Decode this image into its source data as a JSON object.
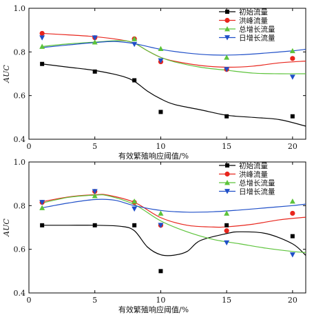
{
  "chart_data": [
    {
      "type": "scatter",
      "title": "",
      "xlabel": "有效繁殖响应阈值/%",
      "ylabel": "AUC",
      "xlim": [
        0,
        21
      ],
      "ylim": [
        0.4,
        1.0
      ],
      "xticks": [
        0,
        5,
        10,
        15,
        20
      ],
      "yticks": [
        0.4,
        0.6,
        0.8,
        1.0
      ],
      "x_tick_labels": [
        "0",
        "5",
        "10",
        "15",
        "20"
      ],
      "y_tick_labels": [
        "0.4",
        "0.6",
        "0.8",
        "1.0"
      ],
      "grid": false,
      "legend_position": "top-right",
      "fitted_curves": true,
      "series": [
        {
          "name": "初始流量",
          "color": "#000000",
          "marker": "square",
          "x": [
            1,
            5,
            8,
            10,
            15,
            20
          ],
          "y": [
            0.745,
            0.71,
            0.67,
            0.525,
            0.505,
            0.505
          ],
          "curve": [
            [
              1,
              0.745
            ],
            [
              3,
              0.73
            ],
            [
              5,
              0.715
            ],
            [
              7,
              0.69
            ],
            [
              8,
              0.665
            ],
            [
              9,
              0.62
            ],
            [
              10,
              0.585
            ],
            [
              11,
              0.56
            ],
            [
              13,
              0.535
            ],
            [
              15,
              0.51
            ],
            [
              17,
              0.5
            ],
            [
              19,
              0.49
            ],
            [
              21,
              0.46
            ]
          ]
        },
        {
          "name": "洪峰流量",
          "color": "#e8251c",
          "marker": "circle",
          "x": [
            1,
            5,
            8,
            10,
            15,
            20
          ],
          "y": [
            0.885,
            0.865,
            0.86,
            0.755,
            0.72,
            0.77
          ],
          "curve": [
            [
              1,
              0.885
            ],
            [
              3,
              0.878
            ],
            [
              5,
              0.87
            ],
            [
              7,
              0.855
            ],
            [
              8,
              0.84
            ],
            [
              9,
              0.805
            ],
            [
              10,
              0.775
            ],
            [
              11,
              0.758
            ],
            [
              13,
              0.738
            ],
            [
              15,
              0.73
            ],
            [
              17,
              0.735
            ],
            [
              19,
              0.75
            ],
            [
              21,
              0.758
            ]
          ]
        },
        {
          "name": "总增长流量",
          "color": "#5cc33a",
          "marker": "triangle-up",
          "x": [
            1,
            5,
            8,
            10,
            15,
            20
          ],
          "y": [
            0.825,
            0.845,
            0.86,
            0.815,
            0.775,
            0.805
          ],
          "curve": [
            [
              1,
              0.825
            ],
            [
              3,
              0.837
            ],
            [
              5,
              0.845
            ],
            [
              7,
              0.852
            ],
            [
              8,
              0.84
            ],
            [
              9,
              0.805
            ],
            [
              10,
              0.775
            ],
            [
              11,
              0.755
            ],
            [
              13,
              0.73
            ],
            [
              15,
              0.716
            ],
            [
              17,
              0.703
            ],
            [
              19,
              0.7
            ],
            [
              21,
              0.7
            ]
          ]
        },
        {
          "name": "日增长流量",
          "color": "#1f4fc8",
          "marker": "triangle-down",
          "x": [
            1,
            5,
            8,
            10,
            15,
            20
          ],
          "y": [
            0.865,
            0.865,
            0.835,
            0.76,
            0.72,
            0.685
          ],
          "curve": [
            [
              1,
              0.82
            ],
            [
              3,
              0.832
            ],
            [
              5,
              0.843
            ],
            [
              6.5,
              0.848
            ],
            [
              8,
              0.838
            ],
            [
              10,
              0.812
            ],
            [
              12,
              0.795
            ],
            [
              14,
              0.786
            ],
            [
              16,
              0.787
            ],
            [
              18,
              0.795
            ],
            [
              20,
              0.805
            ],
            [
              21,
              0.812
            ]
          ]
        }
      ]
    },
    {
      "type": "scatter",
      "title": "",
      "xlabel": "有效繁殖响应阈值/%",
      "ylabel": "AUC",
      "xlim": [
        0,
        21
      ],
      "ylim": [
        0.4,
        1.0
      ],
      "xticks": [
        0,
        5,
        10,
        15,
        20
      ],
      "yticks": [
        0.4,
        0.6,
        0.8,
        1.0
      ],
      "x_tick_labels": [
        "0",
        "5",
        "10",
        "15",
        "20"
      ],
      "y_tick_labels": [
        "0.4",
        "0.6",
        "0.8",
        "1.0"
      ],
      "grid": false,
      "legend_position": "top-right",
      "fitted_curves": true,
      "series": [
        {
          "name": "初始流量",
          "color": "#000000",
          "marker": "square",
          "x": [
            1,
            5,
            8,
            10,
            15,
            20
          ],
          "y": [
            0.71,
            0.71,
            0.71,
            0.5,
            0.71,
            0.66
          ],
          "curve": [
            [
              1,
              0.71
            ],
            [
              3,
              0.71
            ],
            [
              5,
              0.71
            ],
            [
              7,
              0.705
            ],
            [
              8,
              0.685
            ],
            [
              9,
              0.61
            ],
            [
              10,
              0.575
            ],
            [
              11,
              0.573
            ],
            [
              12,
              0.59
            ],
            [
              13,
              0.64
            ],
            [
              15,
              0.672
            ],
            [
              16,
              0.68
            ],
            [
              18,
              0.672
            ],
            [
              20,
              0.625
            ],
            [
              21,
              0.572
            ]
          ]
        },
        {
          "name": "洪峰流量",
          "color": "#e8251c",
          "marker": "circle",
          "x": [
            1,
            5,
            8,
            10,
            15,
            20
          ],
          "y": [
            0.815,
            0.865,
            0.815,
            0.71,
            0.685,
            0.765
          ],
          "curve": [
            [
              1,
              0.818
            ],
            [
              3,
              0.84
            ],
            [
              5,
              0.85
            ],
            [
              6,
              0.848
            ],
            [
              8,
              0.815
            ],
            [
              10,
              0.745
            ],
            [
              12,
              0.71
            ],
            [
              14,
              0.702
            ],
            [
              15,
              0.703
            ],
            [
              17,
              0.715
            ],
            [
              19,
              0.735
            ],
            [
              21,
              0.747
            ]
          ]
        },
        {
          "name": "总增长流量",
          "color": "#5cc33a",
          "marker": "triangle-up",
          "x": [
            1,
            5,
            8,
            10,
            15,
            20
          ],
          "y": [
            0.79,
            0.845,
            0.82,
            0.765,
            0.765,
            0.82
          ],
          "curve": [
            [
              1,
              0.812
            ],
            [
              3,
              0.838
            ],
            [
              5,
              0.848
            ],
            [
              6,
              0.845
            ],
            [
              8,
              0.805
            ],
            [
              10,
              0.73
            ],
            [
              12,
              0.68
            ],
            [
              14,
              0.645
            ],
            [
              16,
              0.625
            ],
            [
              18,
              0.605
            ],
            [
              20,
              0.59
            ],
            [
              21,
              0.585
            ]
          ]
        },
        {
          "name": "日增长流量",
          "color": "#1f4fc8",
          "marker": "triangle-down",
          "x": [
            1,
            5,
            8,
            10,
            15,
            20
          ],
          "y": [
            0.815,
            0.865,
            0.785,
            0.71,
            0.63,
            0.575
          ],
          "curve": [
            [
              1,
              0.79
            ],
            [
              3,
              0.812
            ],
            [
              5,
              0.828
            ],
            [
              6.5,
              0.825
            ],
            [
              8,
              0.8
            ],
            [
              10,
              0.778
            ],
            [
              12,
              0.77
            ],
            [
              14,
              0.772
            ],
            [
              16,
              0.78
            ],
            [
              18,
              0.79
            ],
            [
              20,
              0.8
            ],
            [
              21,
              0.807
            ]
          ]
        }
      ]
    }
  ]
}
